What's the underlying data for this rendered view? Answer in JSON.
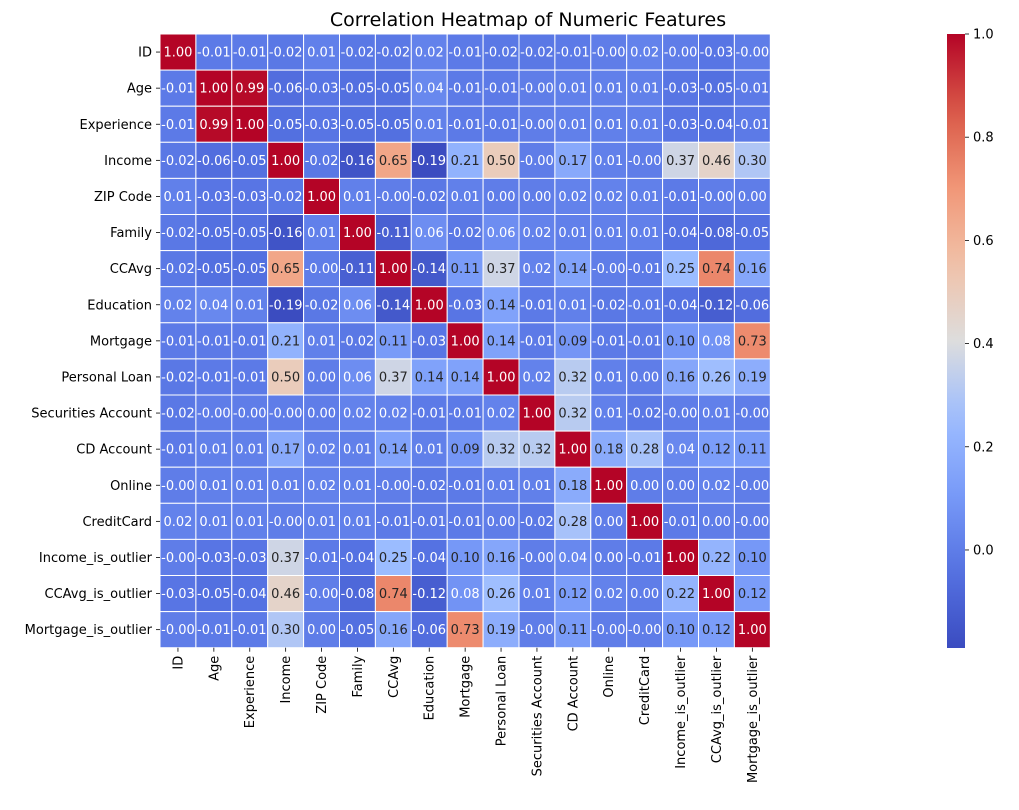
{
  "chart_data": {
    "type": "heatmap",
    "title": "Correlation Heatmap of Numeric Features",
    "xlabel": "",
    "ylabel": "",
    "colormap": "coolwarm",
    "color_range": [
      -0.19,
      1.0
    ],
    "colorbar_ticks": [
      "0.0",
      "0.2",
      "0.4",
      "0.6",
      "0.8",
      "1.0"
    ],
    "colorbar_tick_values": [
      0.0,
      0.2,
      0.4,
      0.6,
      0.8,
      1.0
    ],
    "colors": {
      "low": "#3b4cc0",
      "mid": "#dddddd",
      "high": "#b40426"
    },
    "value_format": "2 decimals",
    "cell_border_color": "#ffffff",
    "labels": [
      "ID",
      "Age",
      "Experience",
      "Income",
      "ZIP Code",
      "Family",
      "CCAvg",
      "Education",
      "Mortgage",
      "Personal Loan",
      "Securities Account",
      "CD Account",
      "Online",
      "CreditCard",
      "Income_is_outlier",
      "CCAvg_is_outlier",
      "Mortgage_is_outlier"
    ],
    "matrix": [
      [
        1.0,
        -0.01,
        -0.01,
        -0.02,
        0.01,
        -0.02,
        -0.02,
        0.02,
        -0.01,
        -0.02,
        -0.02,
        -0.01,
        -0.0,
        0.02,
        -0.0,
        -0.03,
        -0.0
      ],
      [
        -0.01,
        1.0,
        0.99,
        -0.06,
        -0.03,
        -0.05,
        -0.05,
        0.04,
        -0.01,
        -0.01,
        -0.0,
        0.01,
        0.01,
        0.01,
        -0.03,
        -0.05,
        -0.01
      ],
      [
        -0.01,
        0.99,
        1.0,
        -0.05,
        -0.03,
        -0.05,
        -0.05,
        0.01,
        -0.01,
        -0.01,
        -0.0,
        0.01,
        0.01,
        0.01,
        -0.03,
        -0.04,
        -0.01
      ],
      [
        -0.02,
        -0.06,
        -0.05,
        1.0,
        -0.02,
        -0.16,
        0.65,
        -0.19,
        0.21,
        0.5,
        -0.0,
        0.17,
        0.01,
        -0.0,
        0.37,
        0.46,
        0.3
      ],
      [
        0.01,
        -0.03,
        -0.03,
        -0.02,
        1.0,
        0.01,
        -0.0,
        -0.02,
        0.01,
        0.0,
        0.0,
        0.02,
        0.02,
        0.01,
        -0.01,
        -0.0,
        0.0
      ],
      [
        -0.02,
        -0.05,
        -0.05,
        -0.16,
        0.01,
        1.0,
        -0.11,
        0.06,
        -0.02,
        0.06,
        0.02,
        0.01,
        0.01,
        0.01,
        -0.04,
        -0.08,
        -0.05
      ],
      [
        -0.02,
        -0.05,
        -0.05,
        0.65,
        -0.0,
        -0.11,
        1.0,
        -0.14,
        0.11,
        0.37,
        0.02,
        0.14,
        -0.0,
        -0.01,
        0.25,
        0.74,
        0.16
      ],
      [
        0.02,
        0.04,
        0.01,
        -0.19,
        -0.02,
        0.06,
        -0.14,
        1.0,
        -0.03,
        0.14,
        -0.01,
        0.01,
        -0.02,
        -0.01,
        -0.04,
        -0.12,
        -0.06
      ],
      [
        -0.01,
        -0.01,
        -0.01,
        0.21,
        0.01,
        -0.02,
        0.11,
        -0.03,
        1.0,
        0.14,
        -0.01,
        0.09,
        -0.01,
        -0.01,
        0.1,
        0.08,
        0.73
      ],
      [
        -0.02,
        -0.01,
        -0.01,
        0.5,
        0.0,
        0.06,
        0.37,
        0.14,
        0.14,
        1.0,
        0.02,
        0.32,
        0.01,
        0.0,
        0.16,
        0.26,
        0.19
      ],
      [
        -0.02,
        -0.0,
        -0.0,
        -0.0,
        0.0,
        0.02,
        0.02,
        -0.01,
        -0.01,
        0.02,
        1.0,
        0.32,
        0.01,
        -0.02,
        -0.0,
        0.01,
        -0.0
      ],
      [
        -0.01,
        0.01,
        0.01,
        0.17,
        0.02,
        0.01,
        0.14,
        0.01,
        0.09,
        0.32,
        0.32,
        1.0,
        0.18,
        0.28,
        0.04,
        0.12,
        0.11
      ],
      [
        -0.0,
        0.01,
        0.01,
        0.01,
        0.02,
        0.01,
        -0.0,
        -0.02,
        -0.01,
        0.01,
        0.01,
        0.18,
        1.0,
        0.0,
        0.0,
        0.02,
        -0.0
      ],
      [
        0.02,
        0.01,
        0.01,
        -0.0,
        0.01,
        0.01,
        -0.01,
        -0.01,
        -0.01,
        0.0,
        -0.02,
        0.28,
        0.0,
        1.0,
        -0.01,
        0.0,
        -0.0
      ],
      [
        -0.0,
        -0.03,
        -0.03,
        0.37,
        -0.01,
        -0.04,
        0.25,
        -0.04,
        0.1,
        0.16,
        -0.0,
        0.04,
        0.0,
        -0.01,
        1.0,
        0.22,
        0.1
      ],
      [
        -0.03,
        -0.05,
        -0.04,
        0.46,
        -0.0,
        -0.08,
        0.74,
        -0.12,
        0.08,
        0.26,
        0.01,
        0.12,
        0.02,
        0.0,
        0.22,
        1.0,
        0.12
      ],
      [
        -0.0,
        -0.01,
        -0.01,
        0.3,
        0.0,
        -0.05,
        0.16,
        -0.06,
        0.73,
        0.19,
        -0.0,
        0.11,
        -0.0,
        -0.0,
        0.1,
        0.12,
        1.0
      ]
    ]
  }
}
